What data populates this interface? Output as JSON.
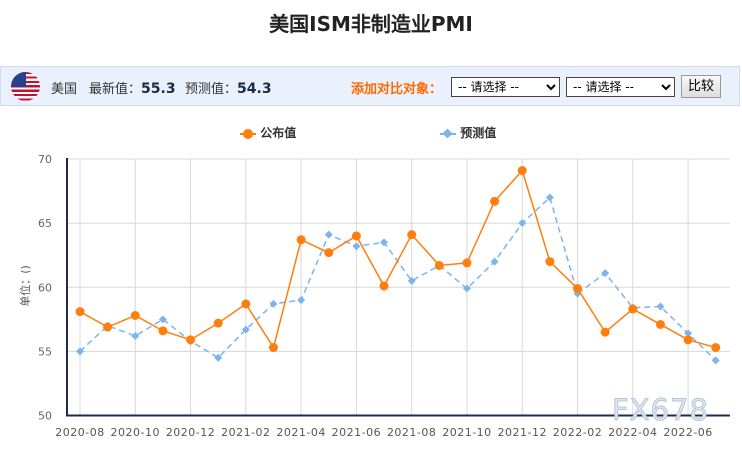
{
  "title": "美国ISM非制造业PMI",
  "info_bar": {
    "flag_icon": "us-flag-icon",
    "country": "美国",
    "latest_label": "最新值：",
    "latest_value": "55.3",
    "forecast_label": "预测值：",
    "forecast_value": "54.3",
    "compare_label": "添加对比对象：",
    "select1": "-- 请选择 --",
    "select2": "-- 请选择 --",
    "compare_button": "比较"
  },
  "watermark": "FX678",
  "chart_data": {
    "type": "line",
    "ylabel": "单位：()",
    "ylim": [
      50,
      70
    ],
    "yticks": [
      "50",
      "55",
      "60",
      "65",
      "70"
    ],
    "grid": true,
    "legend_position": "top",
    "x": [
      "2020-08",
      "2020-09",
      "2020-10",
      "2020-11",
      "2020-12",
      "2021-01",
      "2021-02",
      "2021-03",
      "2021-04",
      "2021-05",
      "2021-06",
      "2021-07",
      "2021-08",
      "2021-09",
      "2021-10",
      "2021-11",
      "2021-12",
      "2022-01",
      "2022-02",
      "2022-03",
      "2022-04",
      "2022-05",
      "2022-06",
      "2022-07"
    ],
    "xtick_labels": [
      "2020-08",
      "2020-10",
      "2020-12",
      "2021-02",
      "2021-04",
      "2021-06",
      "2021-08",
      "2021-10",
      "2021-12",
      "2022-02",
      "2022-04",
      "2022-06"
    ],
    "series": [
      {
        "name": "公布值",
        "color": "#ff7f0e",
        "style": "solid",
        "marker": "circle",
        "values": [
          58.1,
          56.9,
          57.8,
          56.6,
          55.9,
          57.2,
          58.7,
          55.3,
          63.7,
          62.7,
          64.0,
          60.1,
          64.1,
          61.7,
          61.9,
          66.7,
          69.1,
          62.0,
          59.9,
          56.5,
          58.3,
          57.1,
          55.9,
          55.3
        ]
      },
      {
        "name": "预测值",
        "color": "#7cb5ec",
        "style": "dashed",
        "marker": "diamond",
        "values": [
          55.0,
          57.0,
          56.2,
          57.5,
          55.8,
          54.5,
          56.7,
          58.7,
          59.0,
          64.1,
          63.2,
          63.5,
          60.5,
          61.7,
          59.9,
          62.0,
          65.0,
          67.0,
          59.5,
          61.1,
          58.4,
          58.5,
          56.4,
          54.3
        ]
      }
    ]
  }
}
